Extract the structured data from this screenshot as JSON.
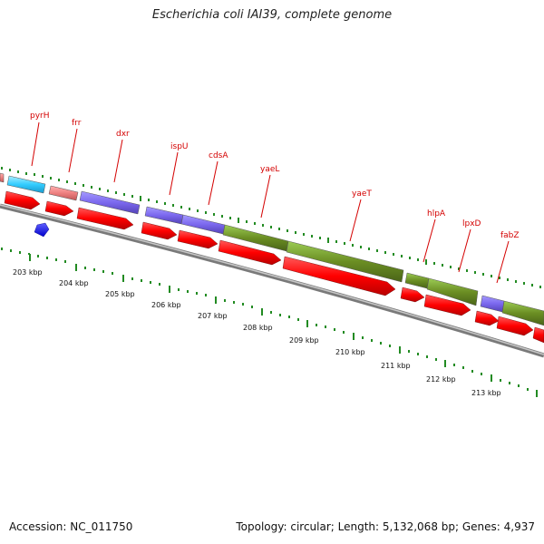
{
  "title": "Escherichia coli IAI39, complete genome",
  "accession_text": "Accession: NC_011750",
  "summary_text": "Topology: circular; Length: 5,132,068 bp; Genes: 4,937",
  "gene_labels": [
    "pyrH",
    "frr",
    "dxr",
    "ispU",
    "cdsA",
    "yaeL",
    "yaeT",
    "hlpA",
    "lpxD",
    "fabZ"
  ],
  "kbp_labels": [
    "203 kbp",
    "204 kbp",
    "205 kbp",
    "206 kbp",
    "207 kbp",
    "208 kbp",
    "209 kbp",
    "210 kbp",
    "211 kbp",
    "212 kbp",
    "213 kbp"
  ],
  "colors": {
    "cds_arrow": "#ff0000",
    "cog_cyan": "#33ccff",
    "cog_pink": "#ee8080",
    "cog_purple": "#7b68ee",
    "cog_olive": "#6b8e23",
    "tick_green": "#228b22",
    "label_red": "#d40000",
    "backbone_gray": "#909090",
    "rna_blue": "#0000ff"
  }
}
